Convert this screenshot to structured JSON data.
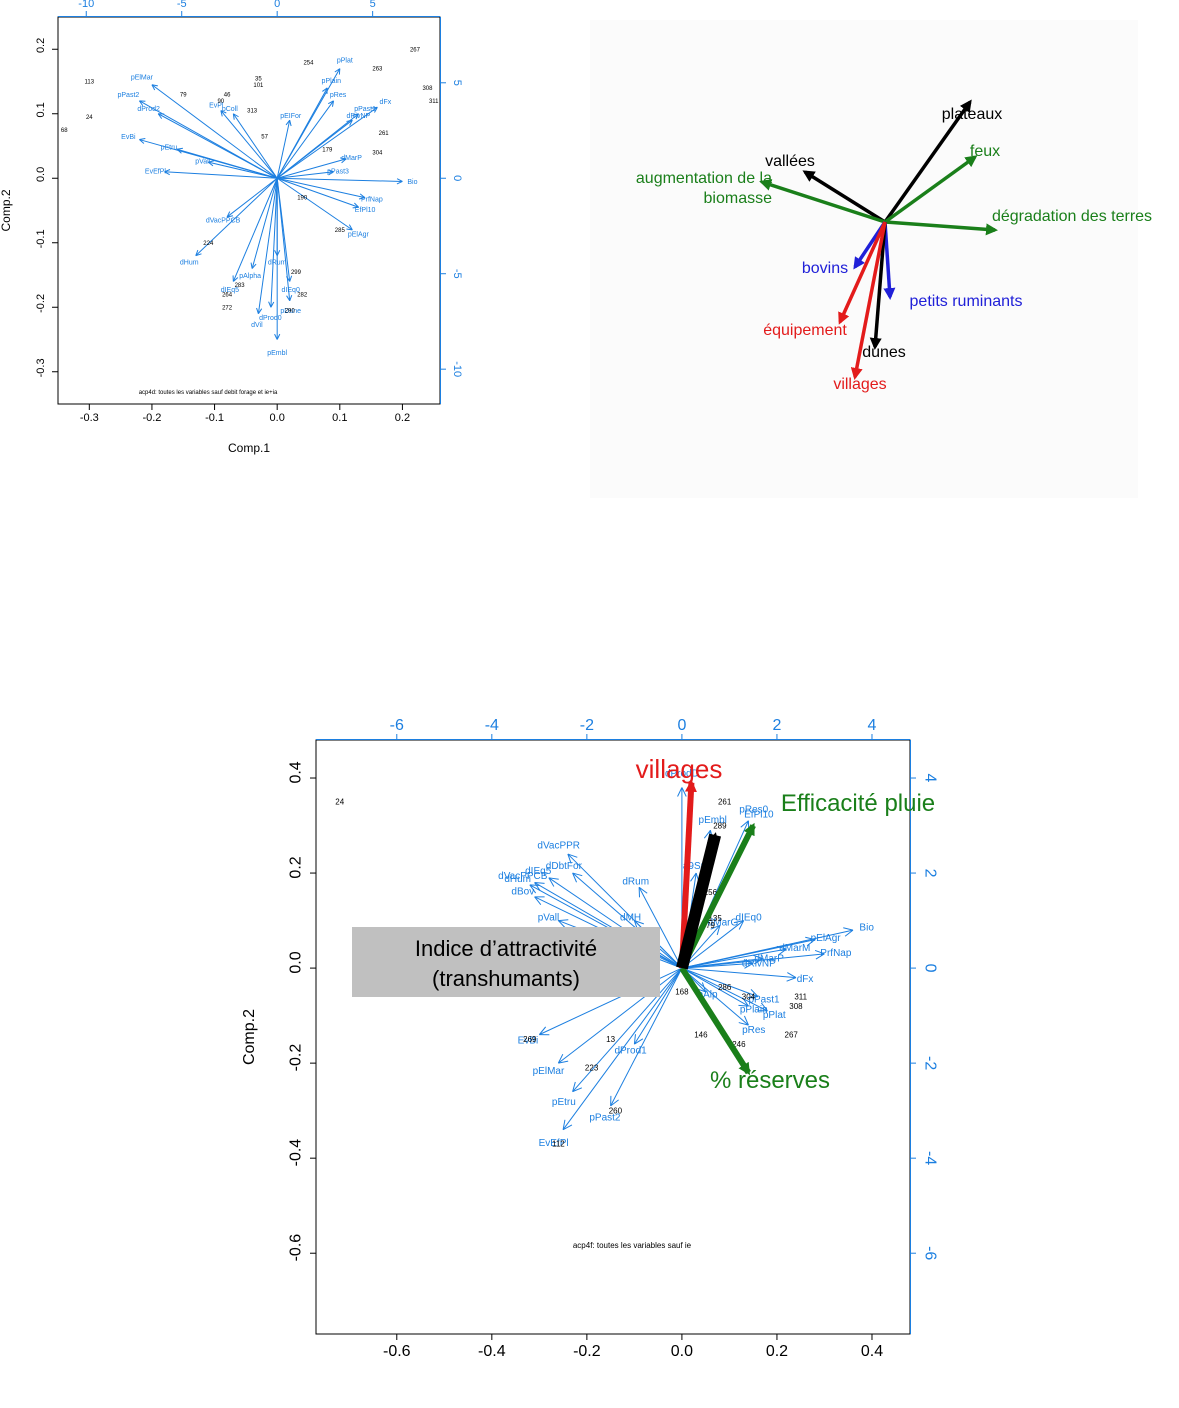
{
  "colors": {
    "blue": "#1c7fe0",
    "black": "#000000",
    "green": "#1a7f1a",
    "red": "#e31b1b",
    "darkblue": "#2020d8",
    "grey": "#c0c0c0"
  },
  "chart_data": [
    {
      "type": "biplot",
      "caption": "acp4d: toutes les variables sauf debit forage et ie+ia",
      "xlabel": "Comp.1",
      "ylabel": "Comp.2",
      "xlim": [
        -0.35,
        0.26
      ],
      "ylim": [
        -0.35,
        0.25
      ],
      "bottom_ticks": [
        "-0.3",
        "-0.2",
        "-0.1",
        "0.0",
        "0.1",
        "0.2"
      ],
      "left_ticks": [
        "-0.3",
        "-0.2",
        "-0.1",
        "0.0",
        "0.1",
        "0.2"
      ],
      "top_ticks": [
        "-10",
        "-5",
        "0",
        "5"
      ],
      "right_ticks": [
        "-10",
        "-5",
        "0",
        "5"
      ],
      "variables": [
        {
          "name": "pElMar",
          "x": -0.2,
          "y": 0.145
        },
        {
          "name": "pPast2",
          "x": -0.22,
          "y": 0.12
        },
        {
          "name": "dProd2",
          "x": -0.19,
          "y": 0.1
        },
        {
          "name": "EvBi",
          "x": -0.22,
          "y": 0.06
        },
        {
          "name": "pEtru",
          "x": -0.16,
          "y": 0.045
        },
        {
          "name": "EvEfPl",
          "x": -0.18,
          "y": 0.01
        },
        {
          "name": "pVall",
          "x": -0.11,
          "y": 0.025
        },
        {
          "name": "EvPl",
          "x": -0.09,
          "y": 0.105
        },
        {
          "name": "pColl",
          "x": -0.07,
          "y": 0.1
        },
        {
          "name": "pEIFor",
          "x": 0.02,
          "y": 0.09
        },
        {
          "name": "pPlain",
          "x": 0.08,
          "y": 0.14
        },
        {
          "name": "pPlat",
          "x": 0.1,
          "y": 0.17
        },
        {
          "name": "pRes",
          "x": 0.09,
          "y": 0.12
        },
        {
          "name": "pPast1",
          "x": 0.13,
          "y": 0.1
        },
        {
          "name": "dRivNP",
          "x": 0.12,
          "y": 0.09
        },
        {
          "name": "dFx",
          "x": 0.16,
          "y": 0.11
        },
        {
          "name": "dMarP",
          "x": 0.11,
          "y": 0.03
        },
        {
          "name": "pPast3",
          "x": 0.09,
          "y": 0.01
        },
        {
          "name": "Bio",
          "x": 0.2,
          "y": -0.005
        },
        {
          "name": "PrfNap",
          "x": 0.14,
          "y": -0.03
        },
        {
          "name": "EfPl10",
          "x": 0.13,
          "y": -0.045
        },
        {
          "name": "pElAgr",
          "x": 0.12,
          "y": -0.08
        },
        {
          "name": "dVacPPCB",
          "x": -0.08,
          "y": -0.06
        },
        {
          "name": "dHum",
          "x": -0.13,
          "y": -0.12
        },
        {
          "name": "dIEq5",
          "x": -0.07,
          "y": -0.16
        },
        {
          "name": "pAlpha",
          "x": -0.04,
          "y": -0.14
        },
        {
          "name": "dProd0",
          "x": -0.01,
          "y": -0.2
        },
        {
          "name": "dVil",
          "x": -0.03,
          "y": -0.21
        },
        {
          "name": "pEmbl",
          "x": 0.0,
          "y": -0.25
        },
        {
          "name": "pDune",
          "x": 0.02,
          "y": -0.19
        },
        {
          "name": "dIEq0",
          "x": 0.02,
          "y": -0.16
        },
        {
          "name": "dRum",
          "x": 0.0,
          "y": -0.12
        }
      ],
      "points": [
        {
          "id": "267",
          "x": 0.22,
          "y": 0.2
        },
        {
          "id": "308",
          "x": 0.24,
          "y": 0.14
        },
        {
          "id": "311",
          "x": 0.25,
          "y": 0.12
        },
        {
          "id": "263",
          "x": 0.16,
          "y": 0.17
        },
        {
          "id": "254",
          "x": 0.05,
          "y": 0.18
        },
        {
          "id": "113",
          "x": -0.3,
          "y": 0.15
        },
        {
          "id": "24",
          "x": -0.3,
          "y": 0.095
        },
        {
          "id": "68",
          "x": -0.34,
          "y": 0.075
        },
        {
          "id": "261",
          "x": 0.17,
          "y": 0.07
        },
        {
          "id": "304",
          "x": 0.16,
          "y": 0.04
        },
        {
          "id": "285",
          "x": 0.1,
          "y": -0.08
        },
        {
          "id": "272",
          "x": -0.08,
          "y": -0.2
        },
        {
          "id": "290",
          "x": 0.02,
          "y": -0.205
        },
        {
          "id": "282",
          "x": 0.04,
          "y": -0.18
        },
        {
          "id": "264",
          "x": -0.08,
          "y": -0.18
        },
        {
          "id": "283",
          "x": -0.06,
          "y": -0.165
        },
        {
          "id": "224",
          "x": -0.11,
          "y": -0.1
        },
        {
          "id": "299",
          "x": 0.03,
          "y": -0.145
        },
        {
          "id": "190",
          "x": 0.04,
          "y": -0.03
        },
        {
          "id": "35",
          "x": -0.03,
          "y": 0.155
        },
        {
          "id": "101",
          "x": -0.03,
          "y": 0.145
        },
        {
          "id": "46",
          "x": -0.08,
          "y": 0.13
        },
        {
          "id": "90",
          "x": -0.09,
          "y": 0.12
        },
        {
          "id": "79",
          "x": -0.15,
          "y": 0.13
        },
        {
          "id": "313",
          "x": -0.04,
          "y": 0.105
        },
        {
          "id": "57",
          "x": -0.02,
          "y": 0.065
        },
        {
          "id": "179",
          "x": 0.08,
          "y": 0.045
        }
      ]
    },
    {
      "type": "arrow-diagram",
      "arrows": [
        {
          "label": "plateaux",
          "color": "black",
          "dx": 85,
          "dy": -120
        },
        {
          "label": "feux",
          "color": "green",
          "dx": 90,
          "dy": -65
        },
        {
          "label": "vallées",
          "color": "black",
          "dx": -80,
          "dy": -50
        },
        {
          "label": "augmentation de la",
          "label2": "biomasse",
          "color": "green",
          "dx": -123,
          "dy": -40
        },
        {
          "label": "dégradation des terres",
          "color": "green",
          "dx": 110,
          "dy": 8
        },
        {
          "label": "bovins",
          "color": "darkblue",
          "dx": -30,
          "dy": 45
        },
        {
          "label": "petits ruminants",
          "color": "darkblue",
          "dx": 5,
          "dy": 75
        },
        {
          "label": "équipement",
          "color": "red",
          "dx": -45,
          "dy": 100
        },
        {
          "label": "dunes",
          "color": "black",
          "dx": -10,
          "dy": 125
        },
        {
          "label": "villages",
          "color": "red",
          "dx": -30,
          "dy": 155
        }
      ]
    },
    {
      "type": "biplot",
      "caption": "acp4f: toutes les variables sauf ie",
      "xlabel": "Comp.1",
      "ylabel": "Comp.2",
      "xlim": [
        -0.77,
        0.48
      ],
      "ylim": [
        -0.77,
        0.48
      ],
      "bottom_ticks": [
        "-0.6",
        "-0.4",
        "-0.2",
        "0.0",
        "0.2",
        "0.4"
      ],
      "left_ticks": [
        "-0.6",
        "-0.4",
        "-0.2",
        "0.0",
        "0.2",
        "0.4"
      ],
      "top_ticks": [
        "-6",
        "-4",
        "-2",
        "0",
        "2",
        "4"
      ],
      "right_ticks": [
        "-6",
        "-4",
        "-2",
        "0",
        "2",
        "4"
      ],
      "highlight": [
        {
          "label": "villages",
          "color": "red",
          "x": 0.02,
          "y": 0.39
        },
        {
          "label": "Efficacité pluie",
          "color": "green",
          "x": 0.15,
          "y": 0.3
        },
        {
          "label": "% réserves",
          "color": "green",
          "x": 0.14,
          "y": -0.22
        },
        {
          "label": "Indice d’attractivité",
          "label2": "(transhumants)",
          "color": "black",
          "x": 0.07,
          "y": 0.28
        }
      ],
      "variables": [
        {
          "name": "dDbtFor",
          "x": -0.23,
          "y": 0.2
        },
        {
          "name": "dVacPPR",
          "x": -0.24,
          "y": 0.24
        },
        {
          "name": "dIEq5",
          "x": -0.28,
          "y": 0.19
        },
        {
          "name": "dVacPPCB",
          "x": -0.31,
          "y": 0.18
        },
        {
          "name": "dHum",
          "x": -0.32,
          "y": 0.175
        },
        {
          "name": "dBov",
          "x": -0.31,
          "y": 0.15
        },
        {
          "name": "pVall",
          "x": -0.26,
          "y": 0.1
        },
        {
          "name": "dRum",
          "x": -0.09,
          "y": 0.17
        },
        {
          "name": "dMH",
          "x": -0.1,
          "y": 0.1
        },
        {
          "name": "EvBi",
          "x": -0.3,
          "y": -0.14
        },
        {
          "name": "pElMar",
          "x": -0.26,
          "y": -0.2
        },
        {
          "name": "pEtru",
          "x": -0.23,
          "y": -0.26
        },
        {
          "name": "dProd1",
          "x": -0.1,
          "y": -0.16
        },
        {
          "name": "pPast2",
          "x": -0.15,
          "y": -0.29
        },
        {
          "name": "EvEfPl",
          "x": -0.25,
          "y": -0.34
        },
        {
          "name": "pEmbl",
          "x": 0.06,
          "y": 0.29
        },
        {
          "name": "pRes0",
          "x": 0.14,
          "y": 0.31
        },
        {
          "name": "EfPl10",
          "x": 0.15,
          "y": 0.3
        },
        {
          "name": "a9Sp0",
          "x": 0.03,
          "y": 0.2
        },
        {
          "name": "dIEq0",
          "x": 0.13,
          "y": 0.1
        },
        {
          "name": "dMarG",
          "x": 0.08,
          "y": 0.09
        },
        {
          "name": "Bio",
          "x": 0.36,
          "y": 0.08
        },
        {
          "name": "pElAgr",
          "x": 0.28,
          "y": 0.06
        },
        {
          "name": "dMarM",
          "x": 0.22,
          "y": 0.04
        },
        {
          "name": "dMarP",
          "x": 0.17,
          "y": 0.02
        },
        {
          "name": "dRivNP",
          "x": 0.15,
          "y": 0.01
        },
        {
          "name": "PrfNap",
          "x": 0.3,
          "y": 0.03
        },
        {
          "name": "dFx",
          "x": 0.24,
          "y": -0.02
        },
        {
          "name": "pPast1",
          "x": 0.16,
          "y": -0.06
        },
        {
          "name": "pPlain",
          "x": 0.14,
          "y": -0.08
        },
        {
          "name": "pPlat",
          "x": 0.18,
          "y": -0.09
        },
        {
          "name": "pRes",
          "x": 0.14,
          "y": -0.12
        },
        {
          "name": "pAlp",
          "x": 0.05,
          "y": -0.05
        },
        {
          "name": "dProdD",
          "x": 0.0,
          "y": 0.38
        }
      ],
      "points": [
        {
          "id": "24",
          "x": -0.72,
          "y": 0.35
        },
        {
          "id": "261",
          "x": 0.09,
          "y": 0.35
        },
        {
          "id": "289",
          "x": 0.08,
          "y": 0.3
        },
        {
          "id": "256",
          "x": 0.06,
          "y": 0.16
        },
        {
          "id": "135",
          "x": 0.07,
          "y": 0.105
        },
        {
          "id": "79",
          "x": 0.06,
          "y": 0.09
        },
        {
          "id": "286",
          "x": 0.09,
          "y": -0.04
        },
        {
          "id": "304",
          "x": 0.14,
          "y": -0.06
        },
        {
          "id": "311",
          "x": 0.25,
          "y": -0.06
        },
        {
          "id": "308",
          "x": 0.24,
          "y": -0.08
        },
        {
          "id": "267",
          "x": 0.23,
          "y": -0.14
        },
        {
          "id": "246",
          "x": 0.12,
          "y": -0.16
        },
        {
          "id": "146",
          "x": 0.04,
          "y": -0.14
        },
        {
          "id": "269",
          "x": -0.32,
          "y": -0.15
        },
        {
          "id": "223",
          "x": -0.19,
          "y": -0.21
        },
        {
          "id": "260",
          "x": -0.14,
          "y": -0.3
        },
        {
          "id": "112",
          "x": -0.26,
          "y": -0.37
        },
        {
          "id": "168",
          "x": 0.0,
          "y": -0.05
        },
        {
          "id": "13",
          "x": -0.15,
          "y": -0.15
        }
      ]
    }
  ]
}
